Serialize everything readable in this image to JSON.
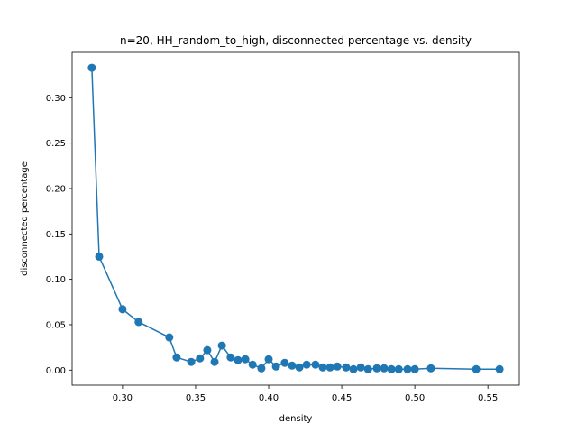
{
  "chart_data": {
    "type": "line",
    "title": "n=20, HH_random_to_high, disconnected percentage vs. density",
    "xlabel": "density",
    "ylabel": "disconnected percentage",
    "xlim": [
      0.2655,
      0.5715
    ],
    "ylim": [
      -0.0166,
      0.35
    ],
    "xticks": [
      0.3,
      0.35,
      0.4,
      0.45,
      0.5,
      0.55
    ],
    "xtick_labels": [
      "0.30",
      "0.35",
      "0.40",
      "0.45",
      "0.50",
      "0.55"
    ],
    "yticks": [
      0.0,
      0.05,
      0.1,
      0.15,
      0.2,
      0.25,
      0.3
    ],
    "ytick_labels": [
      "0.00",
      "0.05",
      "0.10",
      "0.15",
      "0.20",
      "0.25",
      "0.30"
    ],
    "grid": false,
    "line_color": "#1f77b4",
    "marker": "circle",
    "series": [
      {
        "x": [
          0.279,
          0.284,
          0.3,
          0.311,
          0.332,
          0.337,
          0.347,
          0.353,
          0.358,
          0.363,
          0.368,
          0.374,
          0.379,
          0.384,
          0.389,
          0.395,
          0.4,
          0.405,
          0.411,
          0.416,
          0.421,
          0.426,
          0.432,
          0.437,
          0.442,
          0.447,
          0.453,
          0.458,
          0.463,
          0.468,
          0.474,
          0.479,
          0.484,
          0.489,
          0.495,
          0.5,
          0.511,
          0.542,
          0.558
        ],
        "y": [
          0.333,
          0.125,
          0.067,
          0.053,
          0.036,
          0.014,
          0.009,
          0.013,
          0.022,
          0.009,
          0.027,
          0.014,
          0.011,
          0.012,
          0.006,
          0.002,
          0.012,
          0.004,
          0.008,
          0.005,
          0.003,
          0.006,
          0.006,
          0.003,
          0.003,
          0.004,
          0.003,
          0.001,
          0.003,
          0.001,
          0.002,
          0.002,
          0.001,
          0.001,
          0.001,
          0.001,
          0.002,
          0.001,
          0.001
        ]
      }
    ]
  }
}
